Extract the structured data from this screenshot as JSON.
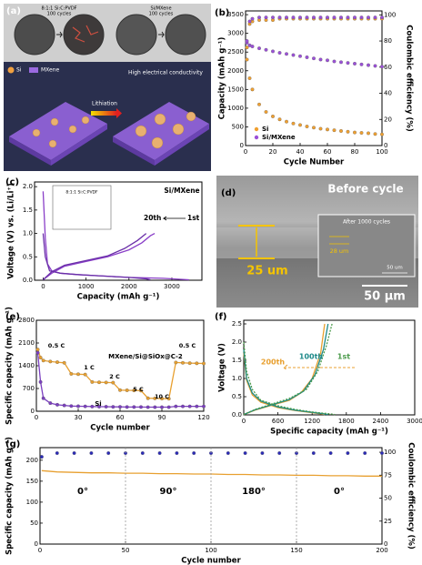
{
  "panel_a": {
    "label": "(a)",
    "left_caption": [
      "8:1:1 Si:C:PVDF",
      "100 cycles"
    ],
    "right_caption": [
      "Si/MXene",
      "100 cycles"
    ],
    "legend": [
      "Si",
      "MXene"
    ],
    "arrow_label": "Lithiation",
    "right_label": "High electrical conductivity"
  },
  "panel_d": {
    "label": "(d)",
    "title": "Before cycle",
    "thickness": "25 um",
    "inset_title": "After 1000 cycles",
    "inset_thickness": "28 um",
    "inset_scale": "50 um",
    "scale": "50 µm"
  },
  "chart_data": [
    {
      "label": "(b)",
      "type": "scatter",
      "xlabel": "Cycle Number",
      "ylabel": "Capacity (mAh g⁻¹)",
      "y2label": "Coulombic efficiency (%)",
      "x": [
        1,
        3,
        5,
        10,
        15,
        20,
        25,
        30,
        35,
        40,
        45,
        50,
        55,
        60,
        65,
        70,
        75,
        80,
        85,
        90,
        95,
        100
      ],
      "xlim": [
        0,
        100
      ],
      "xticks": [
        0,
        20,
        40,
        60,
        80,
        100
      ],
      "ylim": [
        0,
        3600
      ],
      "yticks": [
        0,
        500,
        1000,
        1500,
        2000,
        2500,
        3000,
        3500
      ],
      "y2lim": [
        0,
        103
      ],
      "y2ticks": [
        0,
        20,
        40,
        60,
        80,
        100
      ],
      "legend": "lower left",
      "series": [
        {
          "name": "Si",
          "color": "#f0a030",
          "values": [
            2300,
            1800,
            1500,
            1100,
            900,
            780,
            700,
            640,
            590,
            550,
            510,
            480,
            450,
            430,
            410,
            390,
            370,
            350,
            340,
            330,
            310,
            300
          ]
        },
        {
          "name": "Si/MXene",
          "color": "#9b50d8",
          "values": [
            2750,
            2680,
            2650,
            2600,
            2560,
            2520,
            2480,
            2450,
            2420,
            2390,
            2360,
            2330,
            2300,
            2280,
            2250,
            2230,
            2210,
            2190,
            2170,
            2150,
            2130,
            2110
          ]
        },
        {
          "color": "#f0a030",
          "axis": "y2",
          "values": [
            75,
            93,
            95,
            96,
            96,
            96,
            97,
            97,
            97,
            97,
            97,
            97,
            97,
            97,
            97,
            97,
            97,
            97,
            97,
            97,
            97,
            97
          ]
        },
        {
          "color": "#9b50d8",
          "axis": "y2",
          "values": [
            80,
            95,
            97,
            98,
            98,
            98,
            98,
            98,
            98,
            98,
            98,
            98,
            98,
            98,
            98,
            98,
            98,
            98,
            98,
            98,
            98,
            98
          ]
        }
      ]
    },
    {
      "label": "(c)",
      "type": "line",
      "xlabel": "Capacity (mAh g⁻¹)",
      "ylabel": "Voltage (V) vs. (Li/Li⁺)",
      "xlim": [
        -200,
        3700
      ],
      "xticks": [
        0,
        1000,
        2000,
        3000
      ],
      "ylim": [
        0,
        2.1
      ],
      "yticks": [
        {
          "value": 0,
          "label": "0.0"
        },
        0.5,
        {
          "value": 1,
          "label": "1.0"
        },
        1.5,
        {
          "value": 2,
          "label": "2.0"
        }
      ],
      "annotations": [
        "Si/MXene"
      ],
      "inset_title": "8:1:1 Si:C:PVDF",
      "series": [
        {
          "name": "1st",
          "color": "#8a3fc8",
          "x": [
            0,
            50,
            100,
            200,
            400,
            800,
            1200,
            1600,
            2000,
            2400,
            2800,
            3200,
            3400,
            null,
            0,
            200,
            500,
            1000,
            1500,
            2000,
            2300,
            2500,
            2600
          ],
          "values": [
            1.9,
            0.9,
            0.35,
            0.2,
            0.15,
            0.12,
            0.1,
            0.08,
            0.06,
            0.05,
            0.04,
            0.02,
            0.01,
            null,
            0.01,
            0.15,
            0.3,
            0.4,
            0.5,
            0.65,
            0.8,
            0.95,
            1.0
          ]
        },
        {
          "name": "20th",
          "color": "#6a2fa8",
          "x": [
            0,
            50,
            150,
            400,
            800,
            1200,
            1600,
            2000,
            2400,
            2500,
            null,
            0,
            200,
            500,
            1000,
            1500,
            1900,
            2200,
            2400
          ],
          "values": [
            1.0,
            0.5,
            0.2,
            0.15,
            0.12,
            0.1,
            0.08,
            0.06,
            0.03,
            0.01,
            null,
            0.01,
            0.18,
            0.32,
            0.42,
            0.52,
            0.68,
            0.85,
            1.0
          ]
        }
      ]
    },
    {
      "label": "(e)",
      "type": "line",
      "markers": true,
      "xlabel": "Cycle number",
      "ylabel": "Specific capacity (mAh g⁻¹)",
      "x": [
        1,
        3,
        5,
        10,
        15,
        20,
        25,
        30,
        35,
        40,
        45,
        50,
        55,
        60,
        65,
        70,
        75,
        80,
        85,
        90,
        95,
        100,
        105,
        110,
        115,
        120
      ],
      "xlim": [
        0,
        120
      ],
      "xticks": [
        0,
        30,
        60,
        90,
        120
      ],
      "ylim": [
        0,
        2800
      ],
      "yticks": [
        0,
        700,
        1400,
        2100,
        2800
      ],
      "annotations": [
        "0.5 C",
        "1 C",
        "2 C",
        "5 C",
        "10 C",
        "0.5 C"
      ],
      "series": [
        {
          "name": "MXene/Si@SiOx@C-2",
          "color": "#e8a030",
          "values": [
            1900,
            1650,
            1560,
            1530,
            1510,
            1490,
            1150,
            1140,
            1130,
            900,
            890,
            885,
            880,
            650,
            645,
            640,
            635,
            400,
            395,
            390,
            385,
            1500,
            1490,
            1480,
            1475,
            1470
          ]
        },
        {
          "name": "Si",
          "color": "#7b3fc0",
          "values": [
            1800,
            900,
            400,
            250,
            200,
            180,
            160,
            155,
            150,
            145,
            140,
            140,
            135,
            135,
            130,
            130,
            130,
            125,
            125,
            125,
            125,
            150,
            150,
            150,
            150,
            150
          ]
        }
      ]
    },
    {
      "label": "(f)",
      "type": "line",
      "xlabel": "Specific capacity (mAh g⁻¹)",
      "ylabel": "Voltage (V)",
      "xlim": [
        0,
        3000
      ],
      "xticks": [
        0,
        600,
        1200,
        1800,
        2400,
        3000
      ],
      "ylim": [
        0,
        2.6
      ],
      "yticks": [
        {
          "value": 0,
          "label": "0.0"
        },
        0.5,
        {
          "value": 1,
          "label": "1.0"
        },
        1.5,
        {
          "value": 2,
          "label": "2.0"
        },
        2.5
      ],
      "series": [
        {
          "name": "200th",
          "color": "#e8a030",
          "x": [
            0,
            50,
            150,
            300,
            600,
            900,
            1200,
            1350,
            1420,
            null,
            0,
            200,
            500,
            800,
            1000,
            1200,
            1350,
            1420
          ],
          "values": [
            1.7,
            0.95,
            0.55,
            0.35,
            0.2,
            0.12,
            0.06,
            0.03,
            0.01,
            null,
            0.01,
            0.13,
            0.27,
            0.4,
            0.6,
            1.0,
            1.7,
            2.5
          ]
        },
        {
          "name": "100th",
          "color": "#1f8a8a",
          "x": [
            0,
            50,
            150,
            300,
            600,
            900,
            1200,
            1400,
            1480,
            null,
            0,
            200,
            500,
            800,
            1050,
            1250,
            1400,
            1480
          ],
          "values": [
            1.8,
            1.0,
            0.6,
            0.38,
            0.22,
            0.13,
            0.07,
            0.03,
            0.01,
            null,
            0.01,
            0.14,
            0.28,
            0.42,
            0.65,
            1.1,
            1.8,
            2.5
          ]
        },
        {
          "name": "1st",
          "color": "#4a9a4a",
          "dash": true,
          "x": [
            0,
            50,
            150,
            300,
            600,
            900,
            1200,
            1500,
            1600,
            null,
            0,
            200,
            500,
            800,
            1100,
            1300,
            1450,
            1550
          ],
          "values": [
            2.0,
            1.2,
            0.7,
            0.4,
            0.25,
            0.15,
            0.08,
            0.03,
            0.01,
            null,
            0.01,
            0.15,
            0.3,
            0.45,
            0.7,
            1.2,
            1.9,
            2.5
          ]
        }
      ]
    },
    {
      "label": "(g)",
      "type": "line",
      "xlabel": "Cycle number",
      "ylabel": "Specific capacity (mAh g⁻¹)",
      "y2label": "Coulombic efficiency (%)",
      "x": [
        1,
        10,
        20,
        30,
        40,
        50,
        60,
        70,
        80,
        90,
        100,
        110,
        120,
        130,
        140,
        150,
        160,
        170,
        180,
        190,
        200
      ],
      "xlim": [
        0,
        200
      ],
      "xticks": [
        0,
        50,
        100,
        150,
        200
      ],
      "ylim": [
        0,
        230
      ],
      "yticks": [
        0,
        50,
        100,
        150,
        200
      ],
      "y2lim": [
        0,
        105
      ],
      "y2ticks": [
        0,
        25,
        50,
        75,
        100
      ],
      "annotations": [
        "0°",
        "90°",
        "180°",
        "0°"
      ],
      "series": [
        {
          "color": "#e8a030",
          "values": [
            175,
            172,
            171,
            170,
            170,
            169,
            169,
            168,
            168,
            167,
            167,
            166,
            166,
            165,
            165,
            164,
            164,
            163,
            163,
            162,
            162
          ]
        },
        {
          "type": "scatter",
          "axis": "y2",
          "color": "#2b2bb8",
          "values": [
            95,
            99,
            99,
            99,
            99,
            99,
            99,
            99,
            99,
            99,
            99,
            99,
            99,
            99,
            99,
            99,
            99,
            99,
            99,
            99,
            99
          ]
        }
      ]
    }
  ]
}
